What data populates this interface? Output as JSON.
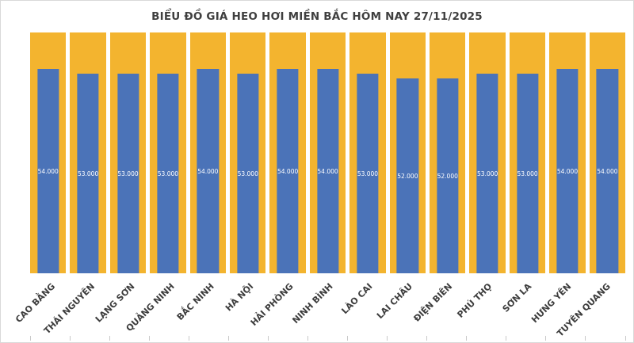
{
  "chart_data": {
    "type": "bar",
    "title": "BIỂU ĐỒ GIÁ HEO HƠI MIỀN BẮC HÔM NAY 27/11/2025",
    "categories": [
      "CAO BẰNG",
      "THÁI NGUYÊN",
      "LẠNG SƠN",
      "QUẢNG NINH",
      "BẮC NINH",
      "HÀ NỘI",
      "HẢI PHÒNG",
      "NINH BÌNH",
      "LÀO CAI",
      "LAI CHÂU",
      "ĐIỆN BIÊN",
      "PHÚ THỌ",
      "SƠN LA",
      "HƯNG YÊN",
      "TUYÊN QUANG"
    ],
    "values": [
      54000,
      53000,
      53000,
      53000,
      54000,
      53000,
      54000,
      54000,
      53000,
      52000,
      52000,
      53000,
      53000,
      54000,
      54000
    ],
    "value_labels": [
      "54.000",
      "53.000",
      "53.000",
      "53.000",
      "54.000",
      "53.000",
      "54.000",
      "54.000",
      "53.000",
      "52.000",
      "52.000",
      "53.000",
      "53.000",
      "54.000",
      "54.000"
    ],
    "xlabel": "",
    "ylabel": "",
    "y_axis_labels_visible": false,
    "grid": false,
    "legend": "none",
    "colors": {
      "bar": "#4B73B8",
      "column_background": "#F3B42F",
      "value_label": "#FFFFFF",
      "axis_label": "#3D3D3D",
      "title": "#3F3F3F",
      "frame": "#D9D9D9",
      "tick": "#C9C9C9"
    }
  }
}
